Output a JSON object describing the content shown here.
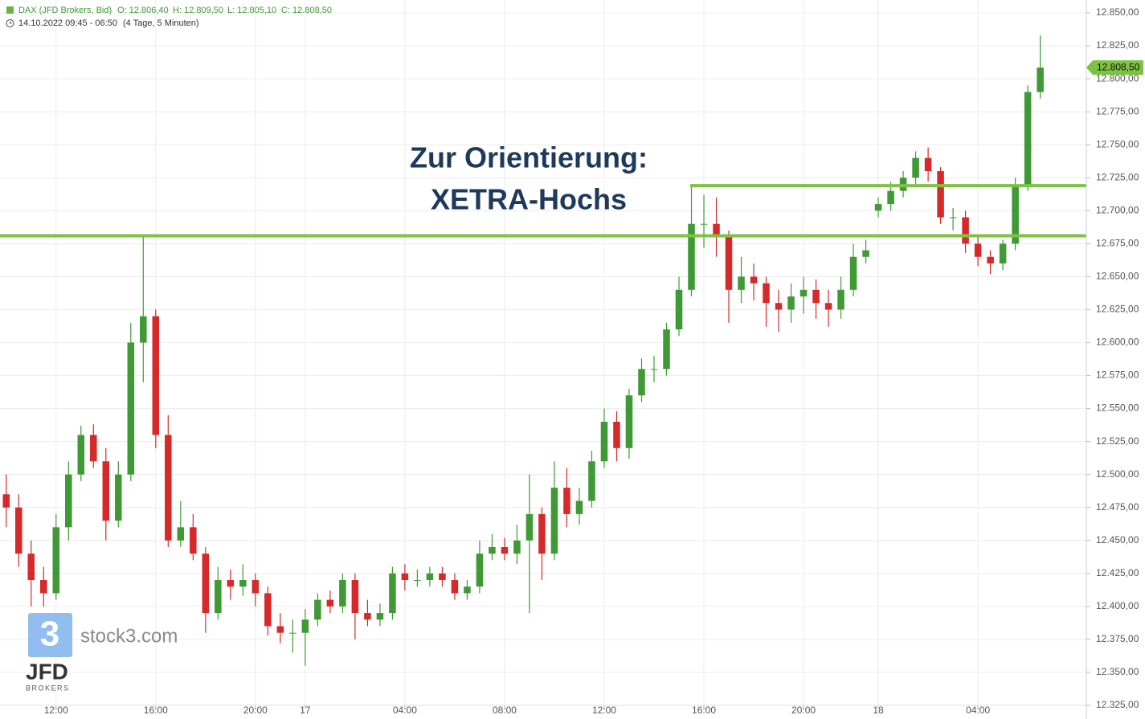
{
  "chart_data": {
    "type": "candlestick",
    "header": {
      "symbol": "DAX (JFD Brokers, Bid)",
      "ohlc": [
        "O: 12.806,40",
        "H: 12.809,50",
        "L: 12.805,10",
        "C: 12.808,50"
      ],
      "range": "14.10.2022 09:45 - 06:50",
      "interval": "(4 Tage, 5 Minuten)"
    },
    "annotation": [
      "Zur Orientierung:",
      "XETRA-Hochs"
    ],
    "watermark": {
      "brand": "stock3.com",
      "logo_digit": "3",
      "broker": "JFD",
      "broker_sub": "BROKERS"
    },
    "up_color": "#3f9a35",
    "down_color": "#d62a2a",
    "level_color": "#7dc242",
    "grid": true,
    "levels": [
      {
        "value": 12681,
        "from": -0.5
      },
      {
        "value": 12719,
        "from": 54.9
      }
    ],
    "last_price": {
      "value": 12808.5,
      "label": "12.808,50",
      "color": "#7dc242"
    },
    "xlim": [
      -0.5,
      86.7
    ],
    "ylim": [
      12325,
      12850
    ],
    "xticks": [
      {
        "value": 4,
        "label": "12:00"
      },
      {
        "value": 12,
        "label": "16:00"
      },
      {
        "value": 20,
        "label": "20:00"
      },
      {
        "value": 24,
        "label": "17"
      },
      {
        "value": 32,
        "label": "04:00"
      },
      {
        "value": 40,
        "label": "08:00"
      },
      {
        "value": 48,
        "label": "12:00"
      },
      {
        "value": 56,
        "label": "16:00"
      },
      {
        "value": 64,
        "label": "20:00"
      },
      {
        "value": 70,
        "label": "18"
      },
      {
        "value": 78,
        "label": "04:00"
      }
    ],
    "yticks": [
      {
        "value": 12325,
        "label": "12.325,00"
      },
      {
        "value": 12350,
        "label": "12.350,00"
      },
      {
        "value": 12375,
        "label": "12.375,00"
      },
      {
        "value": 12400,
        "label": "12.400,00"
      },
      {
        "value": 12425,
        "label": "12.425,00"
      },
      {
        "value": 12450,
        "label": "12.450,00"
      },
      {
        "value": 12475,
        "label": "12.475,00"
      },
      {
        "value": 12500,
        "label": "12.500,00"
      },
      {
        "value": 12525,
        "label": "12.525,00"
      },
      {
        "value": 12550,
        "label": "12.550,00"
      },
      {
        "value": 12575,
        "label": "12.575,00"
      },
      {
        "value": 12600,
        "label": "12.600,00"
      },
      {
        "value": 12625,
        "label": "12.625,00"
      },
      {
        "value": 12650,
        "label": "12.650,00"
      },
      {
        "value": 12675,
        "label": "12.675,00"
      },
      {
        "value": 12700,
        "label": "12.700,00"
      },
      {
        "value": 12725,
        "label": "12.725,00"
      },
      {
        "value": 12750,
        "label": "12.750,00"
      },
      {
        "value": 12775,
        "label": "12.775,00"
      },
      {
        "value": 12800,
        "label": "12.800,00"
      },
      {
        "value": 12825,
        "label": "12.825,00"
      },
      {
        "value": 12850,
        "label": "12.850,00"
      }
    ],
    "x": [
      0,
      1,
      2,
      3,
      4,
      5,
      6,
      7,
      8,
      9,
      10,
      11,
      12,
      13,
      14,
      15,
      16,
      17,
      18,
      19,
      20,
      21,
      22,
      23,
      24,
      25,
      26,
      27,
      28,
      29,
      30,
      31,
      32,
      33,
      34,
      35,
      36,
      37,
      38,
      39,
      40,
      41,
      42,
      43,
      44,
      45,
      46,
      47,
      48,
      49,
      50,
      51,
      52,
      53,
      54,
      55,
      56,
      57,
      58,
      59,
      60,
      61,
      62,
      63,
      64,
      65,
      66,
      67,
      68,
      69,
      70,
      71,
      72,
      73,
      74,
      75,
      76,
      77,
      78,
      79,
      80,
      81,
      82,
      83
    ],
    "open": [
      12485,
      12475,
      12440,
      12420,
      12410,
      12460,
      12500,
      12530,
      12510,
      12465,
      12500,
      12600,
      12620,
      12530,
      12450,
      12460,
      12440,
      12395,
      12420,
      12415,
      12420,
      12410,
      12385,
      12380,
      12380,
      12390,
      12405,
      12400,
      12420,
      12395,
      12390,
      12395,
      12425,
      12420,
      12420,
      12425,
      12420,
      12410,
      12415,
      12440,
      12445,
      12440,
      12450,
      12470,
      12440,
      12490,
      12470,
      12480,
      12510,
      12540,
      12520,
      12560,
      12580,
      12580,
      12610,
      12640,
      12690,
      12690,
      12680,
      12640,
      12650,
      12645,
      12630,
      12625,
      12635,
      12640,
      12630,
      12625,
      12640,
      12665,
      12700,
      12705,
      12715,
      12725,
      12740,
      12730,
      12695,
      12695,
      12675,
      12665,
      12660,
      12675,
      12720,
      12790
    ],
    "high": [
      12500,
      12485,
      12450,
      12430,
      12470,
      12510,
      12537,
      12538,
      12520,
      12510,
      12615,
      12680,
      12625,
      12545,
      12480,
      12470,
      12445,
      12430,
      12428,
      12432,
      12425,
      12415,
      12395,
      12390,
      12398,
      12410,
      12412,
      12425,
      12425,
      12405,
      12402,
      12430,
      12432,
      12428,
      12430,
      12430,
      12425,
      12420,
      12450,
      12455,
      12452,
      12462,
      12500,
      12475,
      12510,
      12505,
      12490,
      12518,
      12550,
      12548,
      12565,
      12588,
      12590,
      12615,
      12650,
      12718,
      12712,
      12710,
      12685,
      12665,
      12660,
      12650,
      12640,
      12645,
      12650,
      12648,
      12640,
      12650,
      12675,
      12678,
      12710,
      12722,
      12730,
      12745,
      12748,
      12733,
      12702,
      12700,
      12680,
      12670,
      12678,
      12725,
      12795,
      12833
    ],
    "low": [
      12460,
      12430,
      12400,
      12400,
      12405,
      12450,
      12495,
      12505,
      12450,
      12460,
      12495,
      12570,
      12520,
      12445,
      12445,
      12435,
      12380,
      12390,
      12405,
      12408,
      12400,
      12378,
      12372,
      12365,
      12355,
      12385,
      12395,
      12395,
      12375,
      12385,
      12385,
      12390,
      12412,
      12415,
      12415,
      12415,
      12405,
      12405,
      12410,
      12435,
      12435,
      12432,
      12395,
      12420,
      12435,
      12460,
      12462,
      12475,
      12505,
      12510,
      12512,
      12555,
      12570,
      12575,
      12605,
      12635,
      12672,
      12665,
      12615,
      12630,
      12632,
      12612,
      12608,
      12615,
      12622,
      12618,
      12612,
      12618,
      12635,
      12660,
      12695,
      12700,
      12710,
      12720,
      12722,
      12690,
      12685,
      12668,
      12658,
      12652,
      12655,
      12670,
      12715,
      12785
    ],
    "close": [
      12475,
      12440,
      12420,
      12410,
      12460,
      12500,
      12530,
      12510,
      12465,
      12500,
      12600,
      12620,
      12530,
      12450,
      12460,
      12440,
      12395,
      12420,
      12415,
      12420,
      12410,
      12385,
      12380,
      12380,
      12390,
      12405,
      12400,
      12420,
      12395,
      12390,
      12395,
      12425,
      12420,
      12420,
      12425,
      12420,
      12410,
      12415,
      12440,
      12445,
      12440,
      12450,
      12470,
      12440,
      12490,
      12470,
      12480,
      12510,
      12540,
      12520,
      12560,
      12580,
      12580,
      12610,
      12640,
      12690,
      12690,
      12680,
      12640,
      12650,
      12645,
      12630,
      12625,
      12635,
      12640,
      12630,
      12625,
      12640,
      12665,
      12670,
      12705,
      12715,
      12725,
      12740,
      12730,
      12695,
      12695,
      12675,
      12665,
      12660,
      12675,
      12720,
      12790,
      12808.5
    ]
  }
}
